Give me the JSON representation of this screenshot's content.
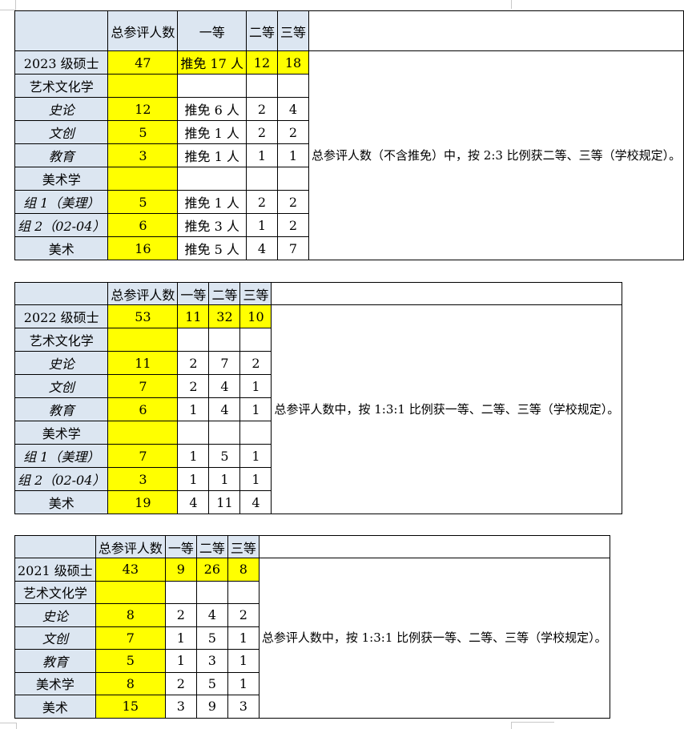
{
  "sheet": {
    "background": "#ffffff"
  },
  "colors": {
    "header_fill": "#dce6f1",
    "highlight_fill": "#ffff00",
    "border": "#000000",
    "gridline": "#c8c8c8",
    "text": "#000000"
  },
  "tables": [
    {
      "name": "masters-2023",
      "column_headers": [
        "总参评人数",
        "一等",
        "二等",
        "三等"
      ],
      "side_note": "总参评人数（不含推免）中，按 2:3 比例获二等、三等（学校规定）。",
      "rows": [
        {
          "label": "2023 级硕士",
          "label_bold": true,
          "highlight_row": true,
          "cells": [
            "47",
            "推免 17 人",
            "12",
            "18"
          ]
        },
        {
          "label": "艺术文化学",
          "cells": [
            "",
            "",
            "",
            ""
          ]
        },
        {
          "label": "史论",
          "label_italic": true,
          "label_align": "right",
          "cells": [
            "12",
            "推免 6 人",
            "2",
            "4"
          ]
        },
        {
          "label": "文创",
          "label_italic": true,
          "label_align": "right",
          "cells": [
            "5",
            "推免 1 人",
            "2",
            "2"
          ]
        },
        {
          "label": "教育",
          "label_italic": true,
          "label_align": "right",
          "cells": [
            "3",
            "推免 1 人",
            "1",
            "1"
          ]
        },
        {
          "label": "美术学",
          "cells": [
            "",
            "",
            "",
            ""
          ]
        },
        {
          "label": "组 1（美理）",
          "label_italic": true,
          "cells": [
            "5",
            "推免 1 人",
            "2",
            "2"
          ]
        },
        {
          "label": "组 2（02-04）",
          "label_italic": true,
          "cells": [
            "6",
            "推免 3 人",
            "1",
            "2"
          ]
        },
        {
          "label": "美术",
          "cells": [
            "16",
            "推免 5 人",
            "4",
            "7"
          ]
        }
      ]
    },
    {
      "name": "masters-2022",
      "column_headers": [
        "总参评人数",
        "一等",
        "二等",
        "三等"
      ],
      "side_note": "总参评人数中，按 1:3:1 比例获一等、二等、三等（学校规定）。",
      "rows": [
        {
          "label": "2022 级硕士",
          "highlight_row": true,
          "cells": [
            "53",
            "11",
            "32",
            "10"
          ]
        },
        {
          "label": "艺术文化学",
          "cells": [
            "",
            "",
            "",
            ""
          ]
        },
        {
          "label": "史论",
          "label_italic": true,
          "label_align": "right",
          "cells": [
            "11",
            "2",
            "7",
            "2"
          ]
        },
        {
          "label": "文创",
          "label_italic": true,
          "label_align": "right",
          "cells": [
            "7",
            "2",
            "4",
            "1"
          ]
        },
        {
          "label": "教育",
          "label_italic": true,
          "label_align": "right",
          "cells": [
            "6",
            "1",
            "4",
            "1"
          ]
        },
        {
          "label": "美术学",
          "cells": [
            "",
            "",
            "",
            ""
          ]
        },
        {
          "label": "组 1（美理）",
          "label_italic": true,
          "cells": [
            "7",
            "1",
            "5",
            "1"
          ]
        },
        {
          "label": "组 2（02-04）",
          "label_italic": true,
          "cells": [
            "3",
            "1",
            "1",
            "1"
          ]
        },
        {
          "label": "美术",
          "cells": [
            "19",
            "4",
            "11",
            "4"
          ]
        }
      ]
    },
    {
      "name": "masters-2021",
      "column_headers": [
        "总参评人数",
        "一等",
        "二等",
        "三等"
      ],
      "side_note": "总参评人数中，按 1:3:1 比例获一等、二等、三等（学校规定）。",
      "rows": [
        {
          "label": "2021 级硕士",
          "highlight_row": true,
          "cells": [
            "43",
            "9",
            "26",
            "8"
          ]
        },
        {
          "label": "艺术文化学",
          "cells": [
            "",
            "",
            "",
            ""
          ]
        },
        {
          "label": "史论",
          "label_italic": true,
          "label_align": "right",
          "cells": [
            "8",
            "2",
            "4",
            "2"
          ]
        },
        {
          "label": "文创",
          "label_italic": true,
          "label_align": "right",
          "cells": [
            "7",
            "1",
            "5",
            "1"
          ]
        },
        {
          "label": "教育",
          "label_italic": true,
          "label_align": "right",
          "cells": [
            "5",
            "1",
            "3",
            "1"
          ]
        },
        {
          "label": "美术学",
          "cells": [
            "8",
            "2",
            "5",
            "1"
          ]
        },
        {
          "label": "美术",
          "cells": [
            "15",
            "3",
            "9",
            "3"
          ]
        }
      ]
    }
  ]
}
